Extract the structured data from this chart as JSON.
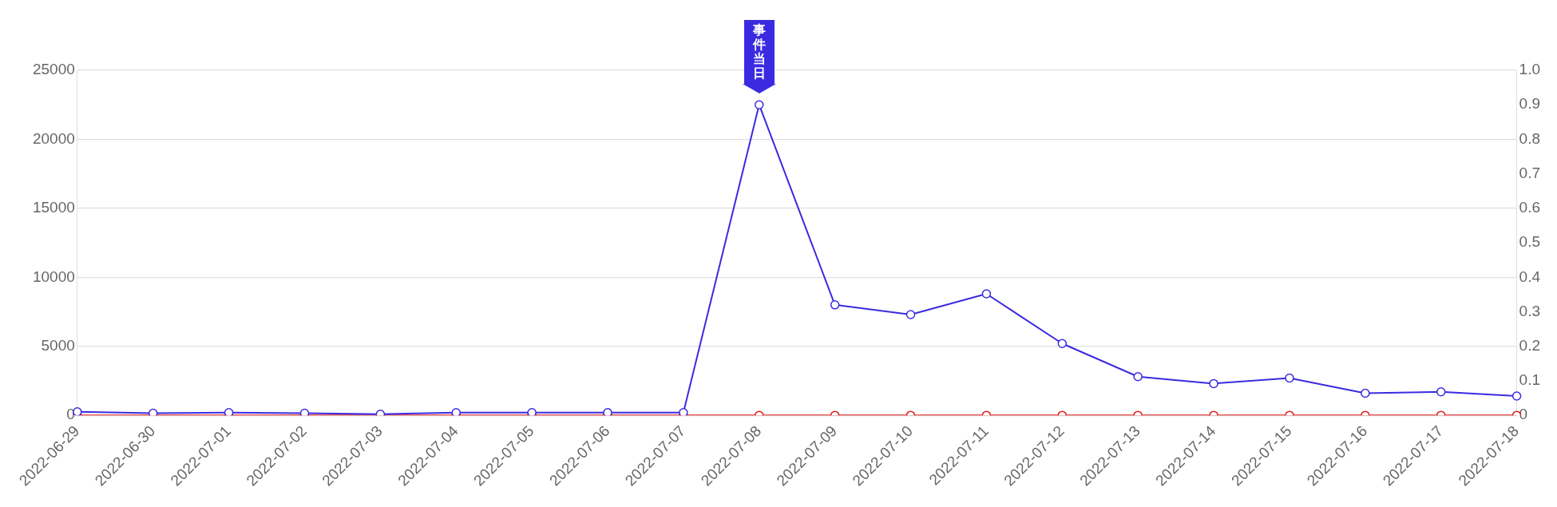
{
  "chart_data": {
    "type": "line",
    "categories": [
      "2022-06-29",
      "2022-06-30",
      "2022-07-01",
      "2022-07-02",
      "2022-07-03",
      "2022-07-04",
      "2022-07-05",
      "2022-07-06",
      "2022-07-07",
      "2022-07-08",
      "2022-07-09",
      "2022-07-10",
      "2022-07-11",
      "2022-07-12",
      "2022-07-13",
      "2022-07-14",
      "2022-07-15",
      "2022-07-16",
      "2022-07-17",
      "2022-07-18"
    ],
    "series": [
      {
        "color": "#3b2be0",
        "values": [
          250,
          150,
          200,
          150,
          80,
          200,
          200,
          200,
          200,
          22500,
          8000,
          7300,
          8800,
          5200,
          2800,
          2300,
          2700,
          1600,
          1700,
          1400
        ]
      },
      {
        "color": "#e01b1b",
        "axis": "y2",
        "values": [
          0,
          0,
          0,
          0,
          0,
          0,
          0,
          0,
          0,
          0,
          0,
          0,
          0,
          0,
          0,
          0,
          0,
          0,
          0,
          0
        ]
      }
    ],
    "ylim": [
      0,
      25000
    ],
    "yticks": [
      0,
      5000,
      10000,
      15000,
      20000,
      25000
    ],
    "y2lim": [
      0,
      1
    ],
    "y2ticks": [
      0,
      {
        "value": 0.1,
        "label": "0.1"
      },
      {
        "value": 0.2,
        "label": "0.2"
      },
      {
        "value": 0.3,
        "label": "0.3"
      },
      {
        "value": 0.4,
        "label": "0.4"
      },
      {
        "value": 0.5,
        "label": "0.5"
      },
      {
        "value": 0.6,
        "label": "0.6"
      },
      {
        "value": 0.7,
        "label": "0.7"
      },
      {
        "value": 0.8,
        "label": "0.8"
      },
      {
        "value": 0.9,
        "label": "0.9"
      },
      {
        "value": 1,
        "label": "1.0"
      }
    ],
    "annotations": [
      {
        "text": "事件当日",
        "x": "2022-07-08",
        "y": 22500
      }
    ],
    "grid": "y",
    "legend": false,
    "marker": "circle",
    "line_style": "solid"
  }
}
